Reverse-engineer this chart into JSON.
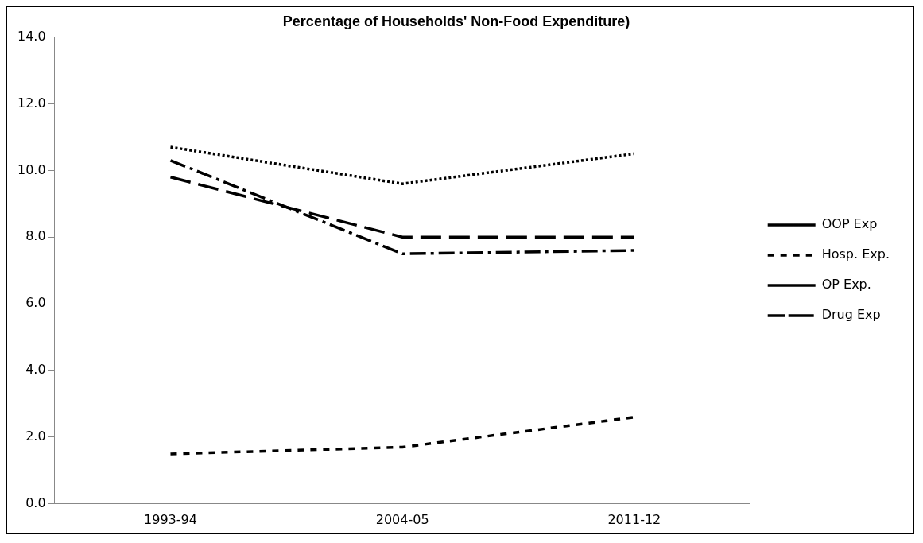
{
  "chart_data": {
    "type": "line",
    "title": "Percentage of Households' Non-Food Expenditure)",
    "categories": [
      "1993-94",
      "2004-05",
      "2011-12"
    ],
    "series": [
      {
        "name": "OOP Exp",
        "color": "#000000",
        "values": [
          10.7,
          9.6,
          10.5
        ],
        "line_style": "dotted"
      },
      {
        "name": "Hosp. Exp.",
        "color": "#000000",
        "values": [
          1.5,
          1.7,
          2.6
        ],
        "line_style": "dashed"
      },
      {
        "name": "OP Exp.",
        "color": "#000000",
        "values": [
          9.8,
          8.0,
          8.0
        ],
        "line_style": "longdash"
      },
      {
        "name": "Drug Exp",
        "color": "#000000",
        "values": [
          10.3,
          7.5,
          7.6
        ],
        "line_style": "dashdot"
      }
    ],
    "ylim": [
      0,
      14
    ],
    "yticks": [
      {
        "value": 0,
        "label": "0.0"
      },
      {
        "value": 2,
        "label": "2.0"
      },
      {
        "value": 4,
        "label": "4.0"
      },
      {
        "value": 6,
        "label": "6.0"
      },
      {
        "value": 8,
        "label": "8.0"
      },
      {
        "value": 10,
        "label": "10.0"
      },
      {
        "value": 12,
        "label": "12.0"
      },
      {
        "value": 14,
        "label": "14.0"
      }
    ],
    "grid": false,
    "legend": "right",
    "marker": "none"
  }
}
